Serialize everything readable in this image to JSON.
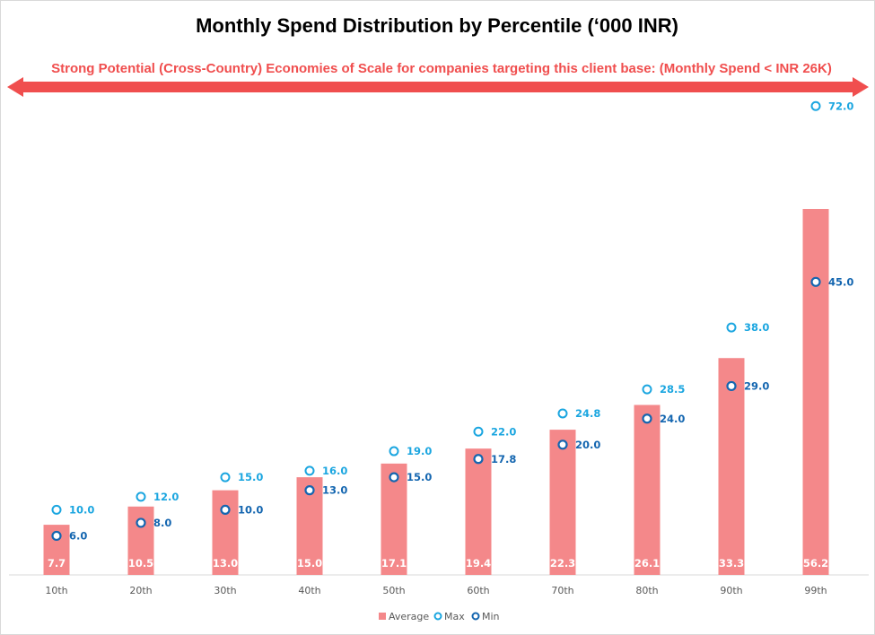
{
  "chart_data": {
    "type": "bar",
    "title": "Monthly Spend Distribution by  Percentile (‘000 INR)",
    "annotation": "Strong Potential (Cross-Country) Economies of Scale for companies targeting this client base: (Monthly Spend < INR 26K)",
    "xlabel": "",
    "ylabel": "",
    "ylim": [
      0,
      80
    ],
    "grid": false,
    "legend_position": "bottom",
    "categories": [
      "10th",
      "20th",
      "30th",
      "40th",
      "50th",
      "60th",
      "70th",
      "80th",
      "90th",
      "99th"
    ],
    "series": [
      {
        "name": "Average",
        "type": "bar",
        "color": "#f4888a",
        "values": [
          7.7,
          10.5,
          13.0,
          15.0,
          17.1,
          19.4,
          22.3,
          26.1,
          33.3,
          56.2
        ],
        "labels": [
          "7.7",
          "10.5",
          "13.0",
          "15.0",
          "17.1",
          "19.4",
          "22.3",
          "26.1",
          "33.3",
          "56.2"
        ]
      },
      {
        "name": "Max",
        "type": "scatter",
        "color": "#1ba6e0",
        "values": [
          10.0,
          12.0,
          15.0,
          16.0,
          19.0,
          22.0,
          24.8,
          28.5,
          38.0,
          72.0
        ],
        "labels": [
          "10.0",
          "12.0",
          "15.0",
          "16.0",
          "19.0",
          "22.0",
          "24.8",
          "28.5",
          "38.0",
          "72.0"
        ]
      },
      {
        "name": "Min",
        "type": "scatter",
        "color": "#1466b0",
        "values": [
          6.0,
          8.0,
          10.0,
          13.0,
          15.0,
          17.8,
          20.0,
          24.0,
          29.0,
          45.0
        ],
        "labels": [
          "6.0",
          "8.0",
          "10.0",
          "13.0",
          "15.0",
          "17.8",
          "20.0",
          "24.0",
          "29.0",
          "45.0"
        ]
      }
    ]
  },
  "colors": {
    "banner": "#f04e4e",
    "axis": "#d9d9d9"
  }
}
